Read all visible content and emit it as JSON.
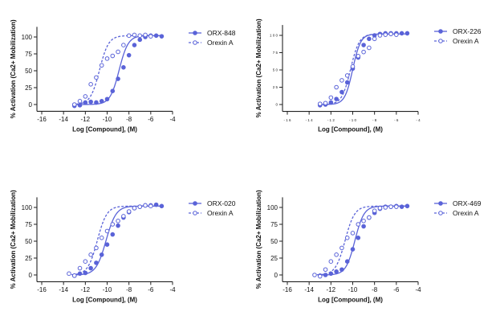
{
  "colors": {
    "series": "#5a63d8",
    "axis": "#222222"
  },
  "chart_data": [
    {
      "type": "scatter",
      "xlabel": "Log [Compound], (M)",
      "ylabel": "% Activation (Ca2+ Mobilization)",
      "xlim": [
        -16,
        -4
      ],
      "ylim": [
        -10,
        115
      ],
      "xticks": [
        -16,
        -14,
        -12,
        -10,
        -8,
        -6,
        -4
      ],
      "yticks": [
        0,
        25,
        50,
        75,
        100
      ],
      "xtick_labels": [
        "-16",
        "-14",
        "-12",
        "-10",
        "-8",
        "-6",
        "-4"
      ],
      "ytick_labels": [
        "0",
        "25",
        "50",
        "75",
        "100"
      ],
      "grid": false,
      "legend_position": "right",
      "series": [
        {
          "name": "ORX-848",
          "style": "filled circles, solid fit",
          "ec50_log": -8.9,
          "hill": 1.05,
          "x": [
            -13.0,
            -12.5,
            -12.0,
            -11.5,
            -11.0,
            -10.5,
            -10.0,
            -9.5,
            -9.0,
            -8.5,
            -8.0,
            -7.5,
            -7.0,
            -6.5,
            -6.0,
            -5.5,
            -5.0
          ],
          "y": [
            -2,
            -1,
            3,
            4,
            3,
            5,
            8,
            20,
            38,
            55,
            73,
            88,
            96,
            100,
            102,
            102,
            101
          ]
        },
        {
          "name": "Orexin A",
          "style": "open circles, dashed fit",
          "ec50_log": -10.7,
          "hill": 1.05,
          "x": [
            -13.0,
            -12.5,
            -12.0,
            -11.5,
            -11.0,
            -10.5,
            -10.0,
            -9.5,
            -9.0,
            -8.5,
            -8.0,
            -7.5,
            -7.0,
            -6.5,
            -6.0
          ],
          "y": [
            0,
            5,
            12,
            30,
            40,
            58,
            68,
            72,
            78,
            88,
            102,
            103,
            102,
            103,
            101
          ]
        }
      ]
    },
    {
      "type": "scatter",
      "xlabel": "Log [Compound], (M)",
      "ylabel": "% Activation (Ca2+ Mobilization)",
      "xlim": [
        -16,
        -4
      ],
      "ylim": [
        -10,
        115
      ],
      "xticks": [
        -16,
        -14,
        -12,
        -10,
        -8,
        -6,
        -4
      ],
      "yticks": [
        0,
        25,
        50,
        75,
        100
      ],
      "xtick_labels": [
        "- 1 6",
        "- 1 4",
        "- 1 2",
        "- 1 0",
        "- 8",
        "- 6",
        "- 4"
      ],
      "ytick_labels": [
        "0",
        "2 5",
        "5 0",
        "7 5",
        "1 0 0"
      ],
      "grid": false,
      "legend_position": "right",
      "series": [
        {
          "name": "ORX-226",
          "style": "filled circles, solid fit",
          "ec50_log": -10.0,
          "hill": 1.2,
          "x": [
            -13.0,
            -12.5,
            -12.0,
            -11.5,
            -11.0,
            -10.5,
            -10.0,
            -9.5,
            -9.0,
            -8.5,
            -8.0,
            -7.5,
            -7.0,
            -6.5,
            -6.0,
            -5.5,
            -5.0
          ],
          "y": [
            -1,
            0,
            3,
            8,
            18,
            32,
            52,
            68,
            86,
            95,
            100,
            102,
            103,
            103,
            103,
            103,
            103
          ]
        },
        {
          "name": "Orexin A",
          "style": "open circles, dashed fit",
          "ec50_log": -10.2,
          "hill": 1.1,
          "x": [
            -13.0,
            -12.5,
            -12.0,
            -11.5,
            -11.0,
            -10.5,
            -10.0,
            -9.5,
            -9.0,
            -8.5,
            -8.0,
            -7.5,
            -7.0,
            -6.5,
            -6.0
          ],
          "y": [
            1,
            2,
            10,
            25,
            35,
            42,
            55,
            70,
            76,
            82,
            95,
            100,
            101,
            102,
            101
          ]
        }
      ]
    },
    {
      "type": "scatter",
      "xlabel": "Log [Compound], (M)",
      "ylabel": "% Activation (Ca2+ Mobilization)",
      "xlim": [
        -16,
        -4
      ],
      "ylim": [
        -10,
        115
      ],
      "xticks": [
        -16,
        -14,
        -12,
        -10,
        -8,
        -6,
        -4
      ],
      "yticks": [
        0,
        25,
        50,
        75,
        100
      ],
      "xtick_labels": [
        "-16",
        "-14",
        "-12",
        "-10",
        "-8",
        "-6",
        "-4"
      ],
      "ytick_labels": [
        "0",
        "25",
        "50",
        "75",
        "100"
      ],
      "grid": false,
      "legend_position": "right",
      "series": [
        {
          "name": "ORX-020",
          "style": "filled circles, solid fit",
          "ec50_log": -10.1,
          "hill": 0.95,
          "x": [
            -13.0,
            -12.5,
            -12.0,
            -11.5,
            -11.0,
            -10.5,
            -10.0,
            -9.5,
            -9.0,
            -8.5,
            -8.0,
            -7.5,
            -7.0,
            -6.5,
            -6.0,
            -5.5,
            -5.0
          ],
          "y": [
            -1,
            2,
            3,
            10,
            18,
            30,
            45,
            60,
            73,
            85,
            93,
            99,
            101,
            103,
            103,
            104,
            102
          ]
        },
        {
          "name": "Orexin A",
          "style": "open circles, dashed fit",
          "ec50_log": -10.9,
          "hill": 1.0,
          "x": [
            -13.5,
            -13.0,
            -12.5,
            -12.0,
            -11.5,
            -11.0,
            -10.5,
            -10.0,
            -9.5,
            -9.0,
            -8.5,
            -8.0,
            -7.5,
            -7.0,
            -6.5,
            -6.0
          ],
          "y": [
            2,
            -1,
            10,
            20,
            30,
            40,
            55,
            65,
            75,
            80,
            87,
            94,
            99,
            101,
            103,
            102
          ]
        }
      ]
    },
    {
      "type": "scatter",
      "xlabel": "Log [Compound], (M)",
      "ylabel": "% Activation (Ca2+ Mobilization)",
      "xlim": [
        -16,
        -4
      ],
      "ylim": [
        -10,
        115
      ],
      "xticks": [
        -16,
        -14,
        -12,
        -10,
        -8,
        -6,
        -4
      ],
      "yticks": [
        0,
        25,
        50,
        75,
        100
      ],
      "xtick_labels": [
        "-16",
        "-14",
        "-12",
        "-10",
        "-8",
        "-6",
        "-4"
      ],
      "ytick_labels": [
        "0",
        "25",
        "50",
        "75",
        "100"
      ],
      "grid": false,
      "legend_position": "right",
      "series": [
        {
          "name": "ORX-469",
          "style": "filled circles, solid fit",
          "ec50_log": -9.8,
          "hill": 1.05,
          "x": [
            -13.0,
            -12.5,
            -12.0,
            -11.5,
            -11.0,
            -10.5,
            -10.0,
            -9.5,
            -9.0,
            -8.5,
            -8.0,
            -7.5,
            -7.0,
            -6.5,
            -6.0,
            -5.5,
            -5.0
          ],
          "y": [
            -1,
            0,
            2,
            5,
            8,
            20,
            38,
            55,
            72,
            85,
            92,
            98,
            101,
            101,
            102,
            101,
            102
          ]
        },
        {
          "name": "Orexin A",
          "style": "open circles, dashed fit",
          "ec50_log": -10.7,
          "hill": 1.0,
          "x": [
            -13.5,
            -13.0,
            -12.5,
            -12.0,
            -11.5,
            -11.0,
            -10.5,
            -10.0,
            -9.5,
            -9.0,
            -8.5,
            -8.0,
            -7.5,
            -7.0,
            -6.5,
            -6.0
          ],
          "y": [
            0,
            -2,
            8,
            20,
            30,
            40,
            55,
            62,
            75,
            80,
            85,
            95,
            99,
            100,
            101,
            101
          ]
        }
      ]
    }
  ]
}
